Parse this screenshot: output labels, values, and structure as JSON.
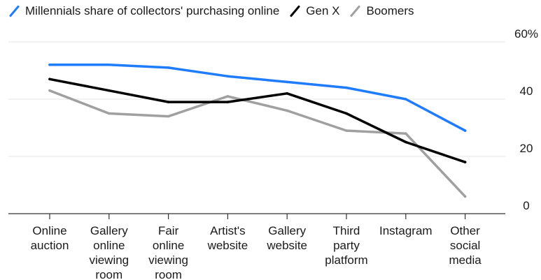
{
  "chart_data": {
    "type": "line",
    "categories": [
      [
        "Online",
        "auction"
      ],
      [
        "Gallery",
        "online",
        "viewing",
        "room"
      ],
      [
        "Fair",
        "online",
        "viewing",
        "room"
      ],
      [
        "Artist's",
        "website"
      ],
      [
        "Gallery",
        "website"
      ],
      [
        "Third",
        "party",
        "platform"
      ],
      [
        "Instagram"
      ],
      [
        "Other",
        "social",
        "media"
      ]
    ],
    "series": [
      {
        "name": "Millennials share of collectors' purchasing online",
        "color": "#1f7cff",
        "values": [
          52,
          52,
          51,
          48,
          46,
          44,
          40,
          29
        ]
      },
      {
        "name": "Gen X",
        "color": "#000000",
        "values": [
          47,
          43,
          39,
          39,
          42,
          35,
          25,
          18
        ]
      },
      {
        "name": "Boomers",
        "color": "#a0a0a0",
        "values": [
          43,
          35,
          34,
          41,
          36,
          29,
          28,
          6
        ]
      }
    ],
    "y_ticks": [
      "60%",
      "40",
      "20",
      "0"
    ],
    "y_tick_values": [
      60,
      40,
      20,
      0
    ],
    "ylim": [
      0,
      60
    ],
    "grid": true,
    "legend_position": "top-left"
  }
}
